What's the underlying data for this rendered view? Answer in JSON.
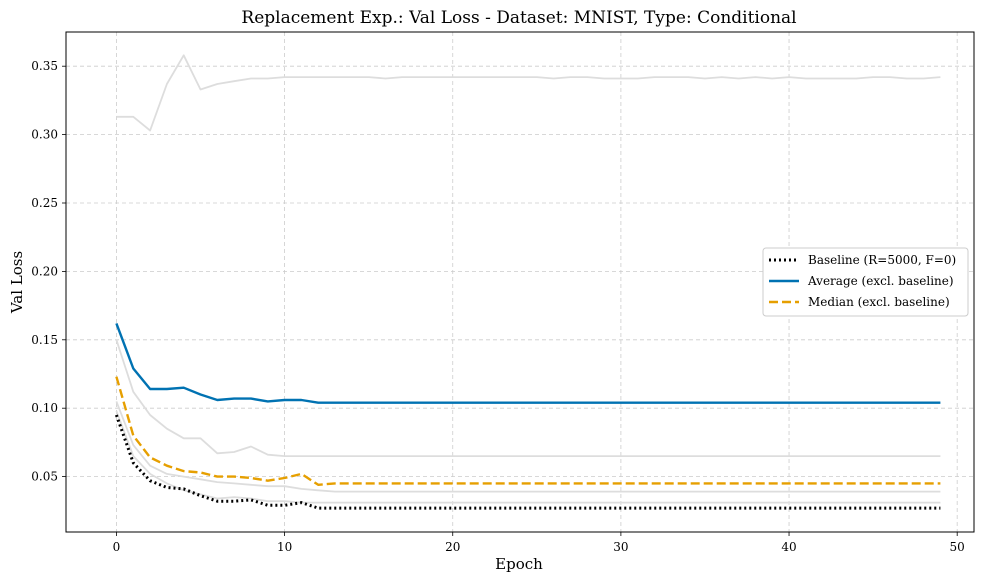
{
  "chart_data": {
    "type": "line",
    "title": "Replacement Exp.: Val Loss - Dataset: MNIST, Type: Conditional",
    "xlabel": "Epoch",
    "ylabel": "Val Loss",
    "xlim": [
      -3,
      51
    ],
    "ylim": [
      0.0095,
      0.375
    ],
    "xticks": [
      0,
      10,
      20,
      30,
      40,
      50
    ],
    "yticks": [
      0.05,
      0.1,
      0.15,
      0.2,
      0.25,
      0.3,
      0.35
    ],
    "ytick_labels": [
      "0.05",
      "0.10",
      "0.15",
      "0.20",
      "0.25",
      "0.30",
      "0.35"
    ],
    "grid": true,
    "legend_position": "center-right",
    "x": [
      0,
      1,
      2,
      3,
      4,
      5,
      6,
      7,
      8,
      9,
      10,
      11,
      12,
      13,
      14,
      15,
      16,
      17,
      18,
      19,
      20,
      21,
      22,
      23,
      24,
      25,
      26,
      27,
      28,
      29,
      30,
      31,
      32,
      33,
      34,
      35,
      36,
      37,
      38,
      39,
      40,
      41,
      42,
      43,
      44,
      45,
      46,
      47,
      48,
      49
    ],
    "background_series": [
      {
        "color": "#dddddd",
        "values": [
          0.313,
          0.313,
          0.303,
          0.337,
          0.358,
          0.333,
          0.337,
          0.339,
          0.341,
          0.341,
          0.342,
          0.342,
          0.342,
          0.342,
          0.342,
          0.342,
          0.341,
          0.342,
          0.342,
          0.342,
          0.342,
          0.342,
          0.342,
          0.342,
          0.342,
          0.342,
          0.341,
          0.342,
          0.342,
          0.341,
          0.341,
          0.341,
          0.342,
          0.342,
          0.342,
          0.341,
          0.342,
          0.341,
          0.342,
          0.341,
          0.342,
          0.341,
          0.341,
          0.341,
          0.341,
          0.342,
          0.342,
          0.341,
          0.341,
          0.342
        ]
      },
      {
        "color": "#dddddd",
        "values": [
          0.15,
          0.112,
          0.095,
          0.085,
          0.078,
          0.078,
          0.067,
          0.068,
          0.072,
          0.066,
          0.065,
          0.065,
          0.065,
          0.065,
          0.065,
          0.065,
          0.065,
          0.065,
          0.065,
          0.065,
          0.065,
          0.065,
          0.065,
          0.065,
          0.065,
          0.065,
          0.065,
          0.065,
          0.065,
          0.065,
          0.065,
          0.065,
          0.065,
          0.065,
          0.065,
          0.065,
          0.065,
          0.065,
          0.065,
          0.065,
          0.065,
          0.065,
          0.065,
          0.065,
          0.065,
          0.065,
          0.065,
          0.065,
          0.065,
          0.065
        ]
      },
      {
        "color": "#dddddd",
        "values": [
          0.105,
          0.073,
          0.058,
          0.052,
          0.05,
          0.048,
          0.046,
          0.045,
          0.044,
          0.043,
          0.043,
          0.041,
          0.04,
          0.039,
          0.039,
          0.039,
          0.039,
          0.039,
          0.039,
          0.039,
          0.039,
          0.039,
          0.039,
          0.039,
          0.039,
          0.039,
          0.039,
          0.039,
          0.039,
          0.039,
          0.039,
          0.039,
          0.039,
          0.039,
          0.039,
          0.039,
          0.039,
          0.039,
          0.039,
          0.039,
          0.039,
          0.039,
          0.039,
          0.039,
          0.039,
          0.039,
          0.039,
          0.039,
          0.039,
          0.039
        ]
      },
      {
        "color": "#dddddd",
        "values": [
          0.098,
          0.065,
          0.052,
          0.045,
          0.04,
          0.037,
          0.034,
          0.035,
          0.034,
          0.032,
          0.032,
          0.031,
          0.031,
          0.031,
          0.031,
          0.031,
          0.031,
          0.031,
          0.031,
          0.031,
          0.031,
          0.031,
          0.031,
          0.031,
          0.031,
          0.031,
          0.031,
          0.031,
          0.031,
          0.031,
          0.031,
          0.031,
          0.031,
          0.031,
          0.031,
          0.031,
          0.031,
          0.031,
          0.031,
          0.031,
          0.031,
          0.031,
          0.031,
          0.031,
          0.031,
          0.031,
          0.031,
          0.031,
          0.031,
          0.031
        ]
      }
    ],
    "series": [
      {
        "name": "Baseline (R=5000, F=0)",
        "color": "#000000",
        "style": "dotted",
        "values": [
          0.095,
          0.06,
          0.047,
          0.042,
          0.041,
          0.036,
          0.032,
          0.032,
          0.033,
          0.029,
          0.029,
          0.031,
          0.027,
          0.027,
          0.027,
          0.027,
          0.027,
          0.027,
          0.027,
          0.027,
          0.027,
          0.027,
          0.027,
          0.027,
          0.027,
          0.027,
          0.027,
          0.027,
          0.027,
          0.027,
          0.027,
          0.027,
          0.027,
          0.027,
          0.027,
          0.027,
          0.027,
          0.027,
          0.027,
          0.027,
          0.027,
          0.027,
          0.027,
          0.027,
          0.027,
          0.027,
          0.027,
          0.027,
          0.027,
          0.027
        ]
      },
      {
        "name": "Average (excl. baseline)",
        "color": "#0072b2",
        "style": "solid",
        "values": [
          0.162,
          0.129,
          0.114,
          0.114,
          0.115,
          0.11,
          0.106,
          0.107,
          0.107,
          0.105,
          0.106,
          0.106,
          0.104,
          0.104,
          0.104,
          0.104,
          0.104,
          0.104,
          0.104,
          0.104,
          0.104,
          0.104,
          0.104,
          0.104,
          0.104,
          0.104,
          0.104,
          0.104,
          0.104,
          0.104,
          0.104,
          0.104,
          0.104,
          0.104,
          0.104,
          0.104,
          0.104,
          0.104,
          0.104,
          0.104,
          0.104,
          0.104,
          0.104,
          0.104,
          0.104,
          0.104,
          0.104,
          0.104,
          0.104,
          0.104
        ]
      },
      {
        "name": "Median (excl. baseline)",
        "color": "#e69f00",
        "style": "dashed",
        "values": [
          0.123,
          0.08,
          0.064,
          0.058,
          0.054,
          0.053,
          0.05,
          0.05,
          0.049,
          0.047,
          0.049,
          0.052,
          0.044,
          0.045,
          0.045,
          0.045,
          0.045,
          0.045,
          0.045,
          0.045,
          0.045,
          0.045,
          0.045,
          0.045,
          0.045,
          0.045,
          0.045,
          0.045,
          0.045,
          0.045,
          0.045,
          0.045,
          0.045,
          0.045,
          0.045,
          0.045,
          0.045,
          0.045,
          0.045,
          0.045,
          0.045,
          0.045,
          0.045,
          0.045,
          0.045,
          0.045,
          0.045,
          0.045,
          0.045,
          0.045
        ]
      }
    ]
  }
}
